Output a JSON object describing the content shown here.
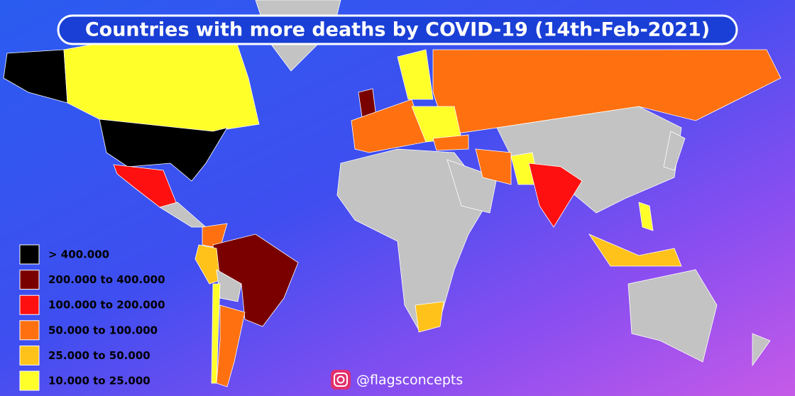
{
  "title": "Countries with more deaths by COVID-19 (14th-Feb-2021)",
  "legend": [
    {
      "label": "> 400.000",
      "color": "#000000"
    },
    {
      "label": "200.000 to 400.000",
      "color": "#7a0000"
    },
    {
      "label": "100.000 to 200.000",
      "color": "#ff1010"
    },
    {
      "label": "50.000 to 100.000",
      "color": "#ff7010"
    },
    {
      "label": "25.000 to 50.000",
      "color": "#ffc21a"
    },
    {
      "label": "10.000 to 25.000",
      "color": "#ffff2a"
    }
  ],
  "credit": "@flagsconcepts"
}
